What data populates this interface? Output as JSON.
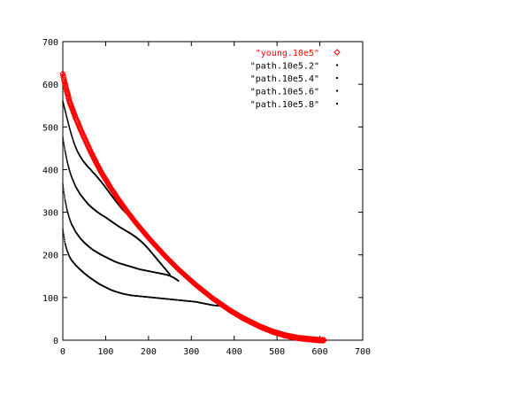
{
  "chart_data": {
    "type": "scatter",
    "xlim": [
      0,
      700
    ],
    "ylim": [
      0,
      700
    ],
    "x_ticks": [
      0,
      100,
      200,
      300,
      400,
      500,
      600,
      700
    ],
    "y_ticks": [
      0,
      100,
      200,
      300,
      400,
      500,
      600,
      700
    ],
    "grid": false,
    "legend_position": "top-right",
    "series": [
      {
        "name": "\"young.10e5\"",
        "color": "#ff0000",
        "marker": "diamond",
        "points": [
          [
            0,
            625
          ],
          [
            3,
            610
          ],
          [
            6,
            598
          ],
          [
            9,
            585
          ],
          [
            12,
            575
          ],
          [
            15,
            562
          ],
          [
            18,
            553
          ],
          [
            22,
            543
          ],
          [
            26,
            532
          ],
          [
            30,
            521
          ],
          [
            35,
            510
          ],
          [
            40,
            497
          ],
          [
            45,
            486
          ],
          [
            50,
            475
          ],
          [
            55,
            464
          ],
          [
            60,
            453
          ],
          [
            65,
            442
          ],
          [
            70,
            432
          ],
          [
            75,
            422
          ],
          [
            80,
            412
          ],
          [
            85,
            403
          ],
          [
            90,
            393
          ],
          [
            95,
            385
          ],
          [
            100,
            377
          ],
          [
            110,
            360
          ],
          [
            120,
            345
          ],
          [
            130,
            330
          ],
          [
            140,
            316
          ],
          [
            150,
            302
          ],
          [
            160,
            289
          ],
          [
            170,
            276
          ],
          [
            180,
            264
          ],
          [
            190,
            252
          ],
          [
            200,
            240
          ],
          [
            210,
            229
          ],
          [
            220,
            218
          ],
          [
            230,
            207
          ],
          [
            240,
            196
          ],
          [
            250,
            186
          ],
          [
            260,
            176
          ],
          [
            270,
            166
          ],
          [
            280,
            157
          ],
          [
            290,
            148
          ],
          [
            300,
            139
          ],
          [
            310,
            130
          ],
          [
            320,
            122
          ],
          [
            330,
            114
          ],
          [
            340,
            106
          ],
          [
            350,
            98
          ],
          [
            360,
            91
          ],
          [
            370,
            84
          ],
          [
            380,
            77
          ],
          [
            390,
            70
          ],
          [
            400,
            64
          ],
          [
            410,
            58
          ],
          [
            420,
            52
          ],
          [
            430,
            47
          ],
          [
            440,
            42
          ],
          [
            450,
            37
          ],
          [
            460,
            32
          ],
          [
            470,
            28
          ],
          [
            480,
            24
          ],
          [
            490,
            20
          ],
          [
            500,
            17
          ],
          [
            510,
            14
          ],
          [
            520,
            11
          ],
          [
            530,
            9
          ],
          [
            540,
            7
          ],
          [
            550,
            5
          ],
          [
            560,
            4
          ],
          [
            570,
            3
          ],
          [
            580,
            2
          ],
          [
            590,
            1
          ],
          [
            600,
            0
          ],
          [
            610,
            0
          ]
        ]
      },
      {
        "name": "\"path.10e5.2\"",
        "color": "#000000",
        "marker": "dot",
        "points": [
          [
            0,
            560
          ],
          [
            5,
            540
          ],
          [
            10,
            520
          ],
          [
            15,
            500
          ],
          [
            20,
            482
          ],
          [
            25,
            466
          ],
          [
            30,
            452
          ],
          [
            35,
            441
          ],
          [
            40,
            432
          ],
          [
            45,
            424
          ],
          [
            50,
            417
          ],
          [
            55,
            411
          ],
          [
            60,
            405
          ],
          [
            65,
            400
          ],
          [
            70,
            394
          ],
          [
            75,
            389
          ],
          [
            80,
            383
          ],
          [
            90,
            371
          ],
          [
            100,
            358
          ],
          [
            110,
            344
          ],
          [
            120,
            331
          ],
          [
            130,
            318
          ],
          [
            140,
            306
          ],
          [
            150,
            296
          ],
          [
            160,
            287
          ],
          [
            170,
            277
          ],
          [
            180,
            267
          ],
          [
            190,
            256
          ],
          [
            200,
            245
          ]
        ]
      },
      {
        "name": "\"path.10e5.4\"",
        "color": "#000000",
        "marker": "dot",
        "points": [
          [
            0,
            475
          ],
          [
            5,
            445
          ],
          [
            10,
            420
          ],
          [
            15,
            400
          ],
          [
            20,
            384
          ],
          [
            30,
            360
          ],
          [
            40,
            343
          ],
          [
            50,
            330
          ],
          [
            60,
            318
          ],
          [
            70,
            309
          ],
          [
            80,
            301
          ],
          [
            90,
            294
          ],
          [
            100,
            288
          ],
          [
            110,
            281
          ],
          [
            120,
            274
          ],
          [
            130,
            267
          ],
          [
            140,
            261
          ],
          [
            150,
            255
          ],
          [
            160,
            249
          ],
          [
            170,
            242
          ],
          [
            180,
            234
          ],
          [
            190,
            225
          ],
          [
            200,
            214
          ],
          [
            210,
            202
          ],
          [
            220,
            190
          ],
          [
            230,
            178
          ],
          [
            240,
            166
          ],
          [
            250,
            154
          ]
        ]
      },
      {
        "name": "\"path.10e5.6\"",
        "color": "#000000",
        "marker": "dot",
        "points": [
          [
            0,
            365
          ],
          [
            5,
            330
          ],
          [
            10,
            305
          ],
          [
            15,
            287
          ],
          [
            20,
            273
          ],
          [
            30,
            254
          ],
          [
            40,
            240
          ],
          [
            50,
            229
          ],
          [
            60,
            220
          ],
          [
            70,
            212
          ],
          [
            80,
            206
          ],
          [
            90,
            200
          ],
          [
            100,
            195
          ],
          [
            110,
            190
          ],
          [
            120,
            185
          ],
          [
            130,
            181
          ],
          [
            140,
            178
          ],
          [
            150,
            175
          ],
          [
            160,
            172
          ],
          [
            170,
            169
          ],
          [
            180,
            166
          ],
          [
            190,
            164
          ],
          [
            200,
            162
          ],
          [
            210,
            160
          ],
          [
            220,
            158
          ],
          [
            230,
            156
          ],
          [
            240,
            154
          ],
          [
            250,
            151
          ],
          [
            260,
            146
          ],
          [
            270,
            139
          ]
        ]
      },
      {
        "name": "\"path.10e5.8\"",
        "color": "#000000",
        "marker": "dot",
        "points": [
          [
            0,
            260
          ],
          [
            5,
            228
          ],
          [
            10,
            210
          ],
          [
            15,
            197
          ],
          [
            20,
            188
          ],
          [
            30,
            176
          ],
          [
            40,
            166
          ],
          [
            50,
            157
          ],
          [
            60,
            149
          ],
          [
            70,
            142
          ],
          [
            80,
            135
          ],
          [
            90,
            129
          ],
          [
            100,
            124
          ],
          [
            110,
            119
          ],
          [
            120,
            115
          ],
          [
            130,
            112
          ],
          [
            140,
            109
          ],
          [
            150,
            107
          ],
          [
            160,
            105
          ],
          [
            170,
            104
          ],
          [
            180,
            103
          ],
          [
            190,
            102
          ],
          [
            200,
            101
          ],
          [
            210,
            100
          ],
          [
            220,
            99
          ],
          [
            230,
            98
          ],
          [
            240,
            97
          ],
          [
            250,
            96
          ],
          [
            260,
            95
          ],
          [
            270,
            94
          ],
          [
            280,
            93
          ],
          [
            290,
            92
          ],
          [
            300,
            91
          ],
          [
            310,
            90
          ],
          [
            320,
            88
          ],
          [
            330,
            86
          ],
          [
            340,
            84
          ],
          [
            350,
            82
          ],
          [
            360,
            81
          ],
          [
            370,
            80
          ]
        ]
      }
    ]
  }
}
